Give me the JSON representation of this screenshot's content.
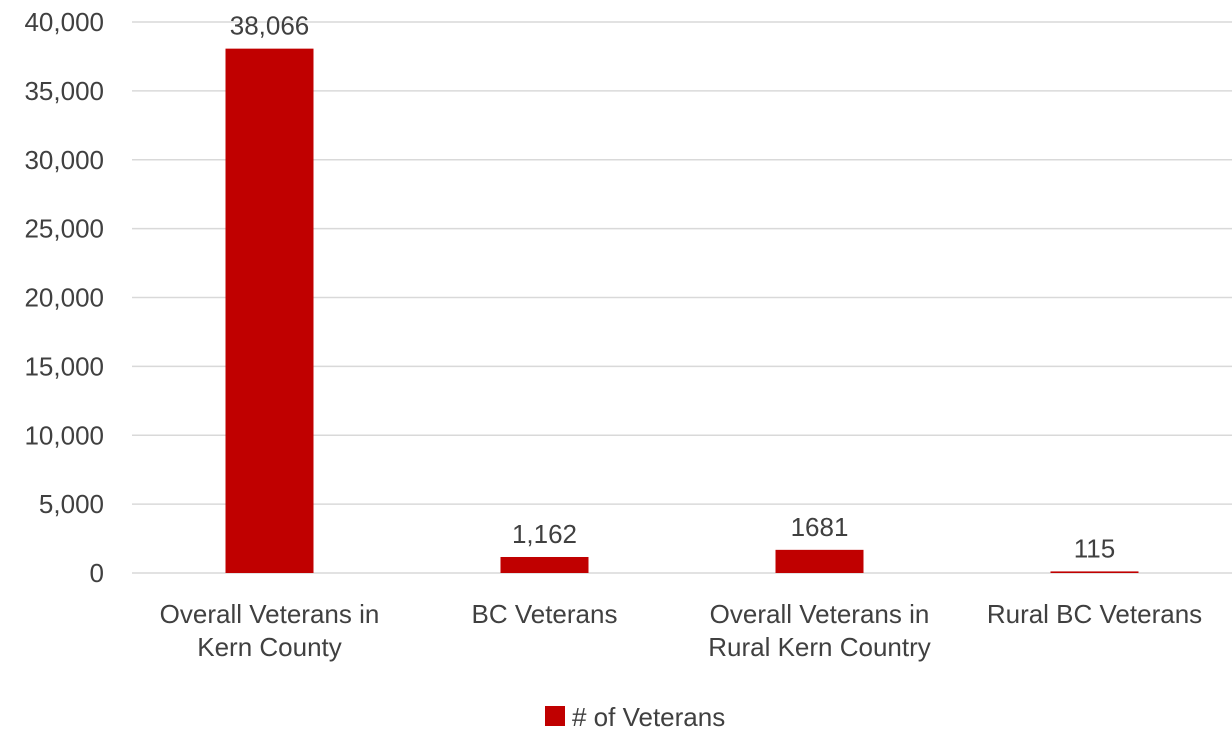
{
  "chart_data": {
    "type": "bar",
    "categories": [
      [
        "Overall Veterans in",
        "Kern County"
      ],
      [
        "BC Veterans"
      ],
      [
        "Overall Veterans in",
        "Rural Kern Country"
      ],
      [
        "Rural BC Veterans"
      ]
    ],
    "series": [
      {
        "name": "# of Veterans",
        "values": [
          38066,
          1162,
          1681,
          115
        ],
        "data_labels": [
          "38,066",
          "1,162",
          "1681",
          "115"
        ],
        "color": "#C00000"
      }
    ],
    "ylim": [
      0,
      40000
    ],
    "yticks": [
      0,
      5000,
      10000,
      15000,
      20000,
      25000,
      30000,
      35000,
      40000
    ],
    "ytick_labels": [
      "0",
      "5,000",
      "10,000",
      "15,000",
      "20,000",
      "25,000",
      "30,000",
      "35,000",
      "40,000"
    ],
    "grid": true,
    "legend_position": "bottom",
    "gridline_color": "#D9D9D9",
    "text_color": "#404040"
  }
}
